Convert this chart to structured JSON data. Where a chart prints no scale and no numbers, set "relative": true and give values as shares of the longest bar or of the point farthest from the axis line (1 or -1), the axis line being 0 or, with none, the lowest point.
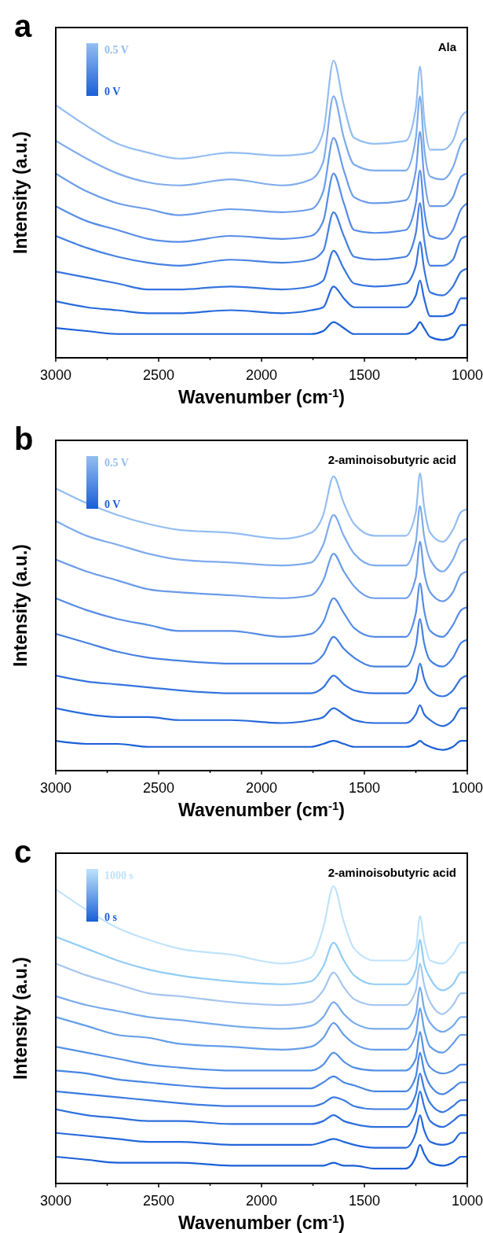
{
  "chart_data": [
    {
      "type": "line",
      "relative": true,
      "annotations": [
        "a",
        "Ala",
        "0.5 V",
        "0 V"
      ],
      "xlabel": "Wavenumber (cm$^{-1}$)",
      "ylabel": "Intensity (a.u.)",
      "xlim": [
        3000,
        1000
      ],
      "xticks": [
        3000,
        {
          "value": 2750,
          "label": null
        },
        2500,
        {
          "value": 2250,
          "label": null
        },
        2000,
        {
          "value": 1750,
          "label": null
        },
        1500,
        {
          "value": 1250,
          "label": null
        },
        1000
      ],
      "tick_labels": "x",
      "x": [
        3000,
        2850,
        2700,
        2550,
        2400,
        2150,
        1900,
        1760,
        1700,
        1650,
        1600,
        1550,
        1450,
        1300,
        1250,
        1230,
        1210,
        1180,
        1120,
        1070,
        1030,
        1000
      ],
      "series": [
        {
          "color": "#1a5fd8",
          "values": [
            0.1,
            0.09,
            0.08,
            0.08,
            0.08,
            0.08,
            0.08,
            0.08,
            0.09,
            0.12,
            0.1,
            0.08,
            0.08,
            0.08,
            0.1,
            0.12,
            0.1,
            0.07,
            0.06,
            0.07,
            0.11,
            0.11
          ]
        },
        {
          "color": "#2669db",
          "values": [
            0.19,
            0.17,
            0.16,
            0.15,
            0.15,
            0.16,
            0.15,
            0.16,
            0.17,
            0.24,
            0.2,
            0.17,
            0.17,
            0.17,
            0.21,
            0.26,
            0.2,
            0.14,
            0.14,
            0.15,
            0.2,
            0.2
          ]
        },
        {
          "color": "#3574de",
          "values": [
            0.29,
            0.27,
            0.25,
            0.23,
            0.23,
            0.24,
            0.23,
            0.24,
            0.26,
            0.36,
            0.3,
            0.25,
            0.24,
            0.25,
            0.31,
            0.39,
            0.3,
            0.22,
            0.21,
            0.24,
            0.29,
            0.3
          ]
        },
        {
          "color": "#4580e2",
          "values": [
            0.41,
            0.37,
            0.34,
            0.32,
            0.31,
            0.33,
            0.32,
            0.33,
            0.36,
            0.49,
            0.41,
            0.34,
            0.33,
            0.34,
            0.42,
            0.52,
            0.4,
            0.31,
            0.31,
            0.33,
            0.4,
            0.41
          ]
        },
        {
          "color": "#568ce6",
          "values": [
            0.51,
            0.46,
            0.43,
            0.4,
            0.39,
            0.41,
            0.4,
            0.41,
            0.46,
            0.62,
            0.52,
            0.43,
            0.42,
            0.43,
            0.52,
            0.63,
            0.5,
            0.41,
            0.4,
            0.43,
            0.5,
            0.52
          ]
        },
        {
          "color": "#6a9be9",
          "values": [
            0.62,
            0.56,
            0.52,
            0.5,
            0.48,
            0.5,
            0.49,
            0.5,
            0.56,
            0.74,
            0.63,
            0.54,
            0.52,
            0.53,
            0.63,
            0.76,
            0.61,
            0.51,
            0.51,
            0.54,
            0.61,
            0.62
          ]
        },
        {
          "color": "#7eabed",
          "values": [
            0.73,
            0.67,
            0.62,
            0.59,
            0.58,
            0.6,
            0.58,
            0.6,
            0.66,
            0.88,
            0.74,
            0.65,
            0.63,
            0.63,
            0.74,
            0.88,
            0.71,
            0.61,
            0.6,
            0.64,
            0.72,
            0.74
          ]
        },
        {
          "color": "#93bdf2",
          "values": [
            0.85,
            0.78,
            0.72,
            0.69,
            0.67,
            0.69,
            0.68,
            0.69,
            0.76,
            1,
            0.85,
            0.74,
            0.72,
            0.73,
            0.84,
            0.98,
            0.81,
            0.7,
            0.7,
            0.73,
            0.81,
            0.83
          ]
        }
      ]
    },
    {
      "type": "line",
      "relative": true,
      "annotations": [
        "b",
        "2-aminoisobutyric acid",
        "0.5 V",
        "0 V"
      ],
      "xlabel": "Wavenumber (cm$^{-1}$)",
      "ylabel": "Intensity (a.u.)",
      "xlim": [
        3000,
        1000
      ],
      "xticks": [
        3000,
        {
          "value": 2750,
          "label": null
        },
        2500,
        {
          "value": 2250,
          "label": null
        },
        2000,
        {
          "value": 1750,
          "label": null
        },
        1500,
        {
          "value": 1250,
          "label": null
        },
        1000
      ],
      "tick_labels": "x",
      "x": [
        3000,
        2850,
        2700,
        2550,
        2400,
        2150,
        1900,
        1760,
        1700,
        1650,
        1600,
        1550,
        1450,
        1300,
        1250,
        1230,
        1210,
        1180,
        1120,
        1070,
        1030,
        1000
      ],
      "series": [
        {
          "color": "#1a5fd8",
          "values": [
            0.1,
            0.09,
            0.09,
            0.08,
            0.08,
            0.08,
            0.08,
            0.08,
            0.09,
            0.1,
            0.09,
            0.08,
            0.08,
            0.08,
            0.09,
            0.1,
            0.09,
            0.08,
            0.07,
            0.08,
            0.1,
            0.1
          ]
        },
        {
          "color": "#2669db",
          "values": [
            0.21,
            0.19,
            0.18,
            0.18,
            0.17,
            0.17,
            0.16,
            0.17,
            0.18,
            0.21,
            0.19,
            0.17,
            0.16,
            0.16,
            0.19,
            0.22,
            0.19,
            0.17,
            0.15,
            0.17,
            0.21,
            0.21
          ]
        },
        {
          "color": "#3574de",
          "values": [
            0.32,
            0.3,
            0.29,
            0.28,
            0.27,
            0.26,
            0.26,
            0.26,
            0.28,
            0.32,
            0.29,
            0.27,
            0.26,
            0.26,
            0.3,
            0.36,
            0.31,
            0.27,
            0.25,
            0.27,
            0.31,
            0.32
          ]
        },
        {
          "color": "#4580e2",
          "values": [
            0.46,
            0.43,
            0.4,
            0.38,
            0.37,
            0.36,
            0.36,
            0.36,
            0.39,
            0.45,
            0.41,
            0.38,
            0.35,
            0.35,
            0.42,
            0.51,
            0.43,
            0.37,
            0.35,
            0.38,
            0.43,
            0.44
          ]
        },
        {
          "color": "#568ce6",
          "values": [
            0.58,
            0.54,
            0.51,
            0.49,
            0.47,
            0.47,
            0.45,
            0.46,
            0.5,
            0.58,
            0.53,
            0.48,
            0.45,
            0.45,
            0.53,
            0.63,
            0.54,
            0.47,
            0.45,
            0.49,
            0.54,
            0.55
          ]
        },
        {
          "color": "#6a9be9",
          "values": [
            0.71,
            0.67,
            0.64,
            0.61,
            0.6,
            0.59,
            0.58,
            0.59,
            0.64,
            0.73,
            0.67,
            0.62,
            0.58,
            0.58,
            0.65,
            0.77,
            0.67,
            0.6,
            0.57,
            0.6,
            0.66,
            0.67
          ]
        },
        {
          "color": "#7eabed",
          "values": [
            0.84,
            0.79,
            0.76,
            0.73,
            0.71,
            0.7,
            0.69,
            0.7,
            0.76,
            0.86,
            0.79,
            0.73,
            0.69,
            0.69,
            0.77,
            0.89,
            0.79,
            0.71,
            0.67,
            0.71,
            0.77,
            0.78
          ]
        },
        {
          "color": "#93bdf2",
          "values": [
            0.95,
            0.9,
            0.86,
            0.83,
            0.81,
            0.8,
            0.78,
            0.8,
            0.86,
            0.99,
            0.9,
            0.83,
            0.79,
            0.79,
            0.87,
            1,
            0.89,
            0.8,
            0.77,
            0.81,
            0.87,
            0.88
          ]
        }
      ]
    },
    {
      "type": "line",
      "relative": true,
      "annotations": [
        "c",
        "2-aminoisobutyric acid",
        "1000 s",
        "0 s"
      ],
      "xlabel": "Wavenumber (cm$^{-1}$)",
      "ylabel": "Intensity (a.u.)",
      "xlim": [
        3000,
        1000
      ],
      "xticks": [
        3000,
        {
          "value": 2750,
          "label": null
        },
        2500,
        {
          "value": 2250,
          "label": null
        },
        2000,
        {
          "value": 1750,
          "label": null
        },
        1500,
        {
          "value": 1250,
          "label": null
        },
        1000
      ],
      "tick_labels": "x",
      "x": [
        3000,
        2850,
        2700,
        2550,
        2400,
        2150,
        1900,
        1760,
        1700,
        1650,
        1600,
        1550,
        1450,
        1300,
        1250,
        1230,
        1210,
        1180,
        1120,
        1070,
        1030,
        1000
      ],
      "series": [
        {
          "color": "#1a5fd8",
          "values": [
            0.09,
            0.08,
            0.07,
            0.07,
            0.07,
            0.06,
            0.06,
            0.06,
            0.06,
            0.07,
            0.06,
            0.06,
            0.05,
            0.05,
            0.09,
            0.13,
            0.1,
            0.07,
            0.06,
            0.07,
            0.09,
            0.09
          ]
        },
        {
          "color": "#2367da",
          "values": [
            0.17,
            0.16,
            0.15,
            0.14,
            0.14,
            0.13,
            0.13,
            0.13,
            0.14,
            0.15,
            0.14,
            0.13,
            0.12,
            0.12,
            0.17,
            0.23,
            0.18,
            0.14,
            0.13,
            0.14,
            0.17,
            0.17
          ]
        },
        {
          "color": "#2e70dd",
          "values": [
            0.25,
            0.23,
            0.22,
            0.21,
            0.21,
            0.2,
            0.2,
            0.2,
            0.21,
            0.23,
            0.21,
            0.2,
            0.19,
            0.19,
            0.24,
            0.31,
            0.26,
            0.21,
            0.19,
            0.21,
            0.23,
            0.23
          ]
        },
        {
          "color": "#3a7ae0",
          "values": [
            0.31,
            0.3,
            0.29,
            0.28,
            0.27,
            0.26,
            0.26,
            0.26,
            0.27,
            0.29,
            0.28,
            0.26,
            0.25,
            0.25,
            0.3,
            0.37,
            0.32,
            0.27,
            0.24,
            0.26,
            0.28,
            0.28
          ]
        },
        {
          "color": "#4785e3",
          "values": [
            0.38,
            0.37,
            0.35,
            0.34,
            0.33,
            0.32,
            0.32,
            0.32,
            0.34,
            0.36,
            0.34,
            0.33,
            0.31,
            0.31,
            0.36,
            0.44,
            0.38,
            0.33,
            0.3,
            0.32,
            0.34,
            0.34
          ]
        },
        {
          "color": "#5591e6",
          "values": [
            0.46,
            0.44,
            0.42,
            0.4,
            0.39,
            0.38,
            0.38,
            0.38,
            0.4,
            0.44,
            0.41,
            0.39,
            0.38,
            0.38,
            0.42,
            0.51,
            0.44,
            0.39,
            0.37,
            0.38,
            0.4,
            0.4
          ]
        },
        {
          "color": "#649de9",
          "values": [
            0.56,
            0.53,
            0.5,
            0.49,
            0.47,
            0.46,
            0.45,
            0.46,
            0.49,
            0.54,
            0.5,
            0.47,
            0.45,
            0.45,
            0.5,
            0.59,
            0.52,
            0.46,
            0.44,
            0.47,
            0.5,
            0.5
          ]
        },
        {
          "color": "#76aaec",
          "values": [
            0.63,
            0.6,
            0.58,
            0.56,
            0.55,
            0.53,
            0.52,
            0.53,
            0.56,
            0.61,
            0.57,
            0.54,
            0.52,
            0.52,
            0.57,
            0.66,
            0.59,
            0.54,
            0.51,
            0.53,
            0.56,
            0.56
          ]
        },
        {
          "color": "#a6c6f0",
          "values": [
            0.74,
            0.7,
            0.67,
            0.64,
            0.63,
            0.61,
            0.6,
            0.61,
            0.65,
            0.71,
            0.66,
            0.62,
            0.6,
            0.6,
            0.65,
            0.74,
            0.67,
            0.61,
            0.57,
            0.6,
            0.64,
            0.64
          ]
        },
        {
          "color": "#92cdf6",
          "values": [
            0.83,
            0.79,
            0.75,
            0.72,
            0.7,
            0.68,
            0.67,
            0.68,
            0.73,
            0.81,
            0.75,
            0.7,
            0.67,
            0.67,
            0.72,
            0.82,
            0.74,
            0.69,
            0.65,
            0.67,
            0.71,
            0.71
          ]
        },
        {
          "color": "#bfe3fb",
          "values": [
            0.99,
            0.92,
            0.86,
            0.82,
            0.79,
            0.77,
            0.74,
            0.76,
            0.86,
            1,
            0.88,
            0.79,
            0.75,
            0.75,
            0.79,
            0.9,
            0.82,
            0.75,
            0.74,
            0.77,
            0.81,
            0.81
          ]
        }
      ]
    }
  ]
}
